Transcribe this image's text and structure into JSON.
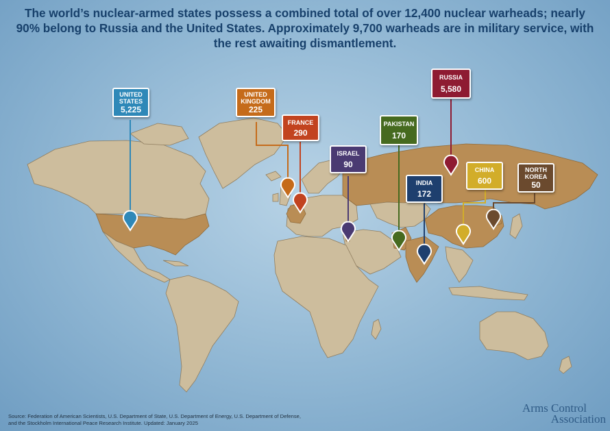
{
  "headline": "The world’s nuclear-armed states possess a combined total of over 12,400 nuclear warheads; nearly 90% belong to Russia and the United States. Approximately 9,700 warheads are in military service, with the rest awaiting dismantlement.",
  "source_line1": "Source: Federation of American Scientists, U.S. Department of State, U.S. Department of Energy, U.S. Department of Defense,",
  "source_line2": "and the Stockholm International Peace Research Institute. Updated: January 2025",
  "brand_line1": "Arms Control",
  "brand_line2": "Association",
  "colors": {
    "ocean": "#8fb6d3",
    "land": "#cdbd9d",
    "nuclear_states": "#b98d55",
    "headline": "#17406b"
  },
  "states": [
    {
      "id": "united-states",
      "name": "UNITED STATES",
      "name_lines": [
        "UNITED",
        "STATES"
      ],
      "warheads": "5,225",
      "color": "#2e88b8"
    },
    {
      "id": "united-kingdom",
      "name": "UNITED KINGDOM",
      "name_lines": [
        "UNITED",
        "KINGDOM"
      ],
      "warheads": "225",
      "color": "#c56b1a"
    },
    {
      "id": "france",
      "name": "FRANCE",
      "name_lines": [
        "FRANCE"
      ],
      "warheads": "290",
      "color": "#c2431f"
    },
    {
      "id": "israel",
      "name": "ISRAEL",
      "name_lines": [
        "ISRAEL"
      ],
      "warheads": "90",
      "color": "#4a3a72"
    },
    {
      "id": "pakistan",
      "name": "PAKISTAN",
      "name_lines": [
        "PAKISTAN"
      ],
      "warheads": "170",
      "color": "#466a1f"
    },
    {
      "id": "russia",
      "name": "RUSSIA",
      "name_lines": [
        "RUSSIA"
      ],
      "warheads": "5,580",
      "color": "#8e1b32"
    },
    {
      "id": "india",
      "name": "INDIA",
      "name_lines": [
        "INDIA"
      ],
      "warheads": "172",
      "color": "#1e3f6e"
    },
    {
      "id": "china",
      "name": "CHINA",
      "name_lines": [
        "CHINA"
      ],
      "warheads": "600",
      "color": "#d2ad2a"
    },
    {
      "id": "north-korea",
      "name": "NORTH KOREA",
      "name_lines": [
        "NORTH",
        "KOREA"
      ],
      "warheads": "50",
      "color": "#6b4a2e"
    }
  ]
}
